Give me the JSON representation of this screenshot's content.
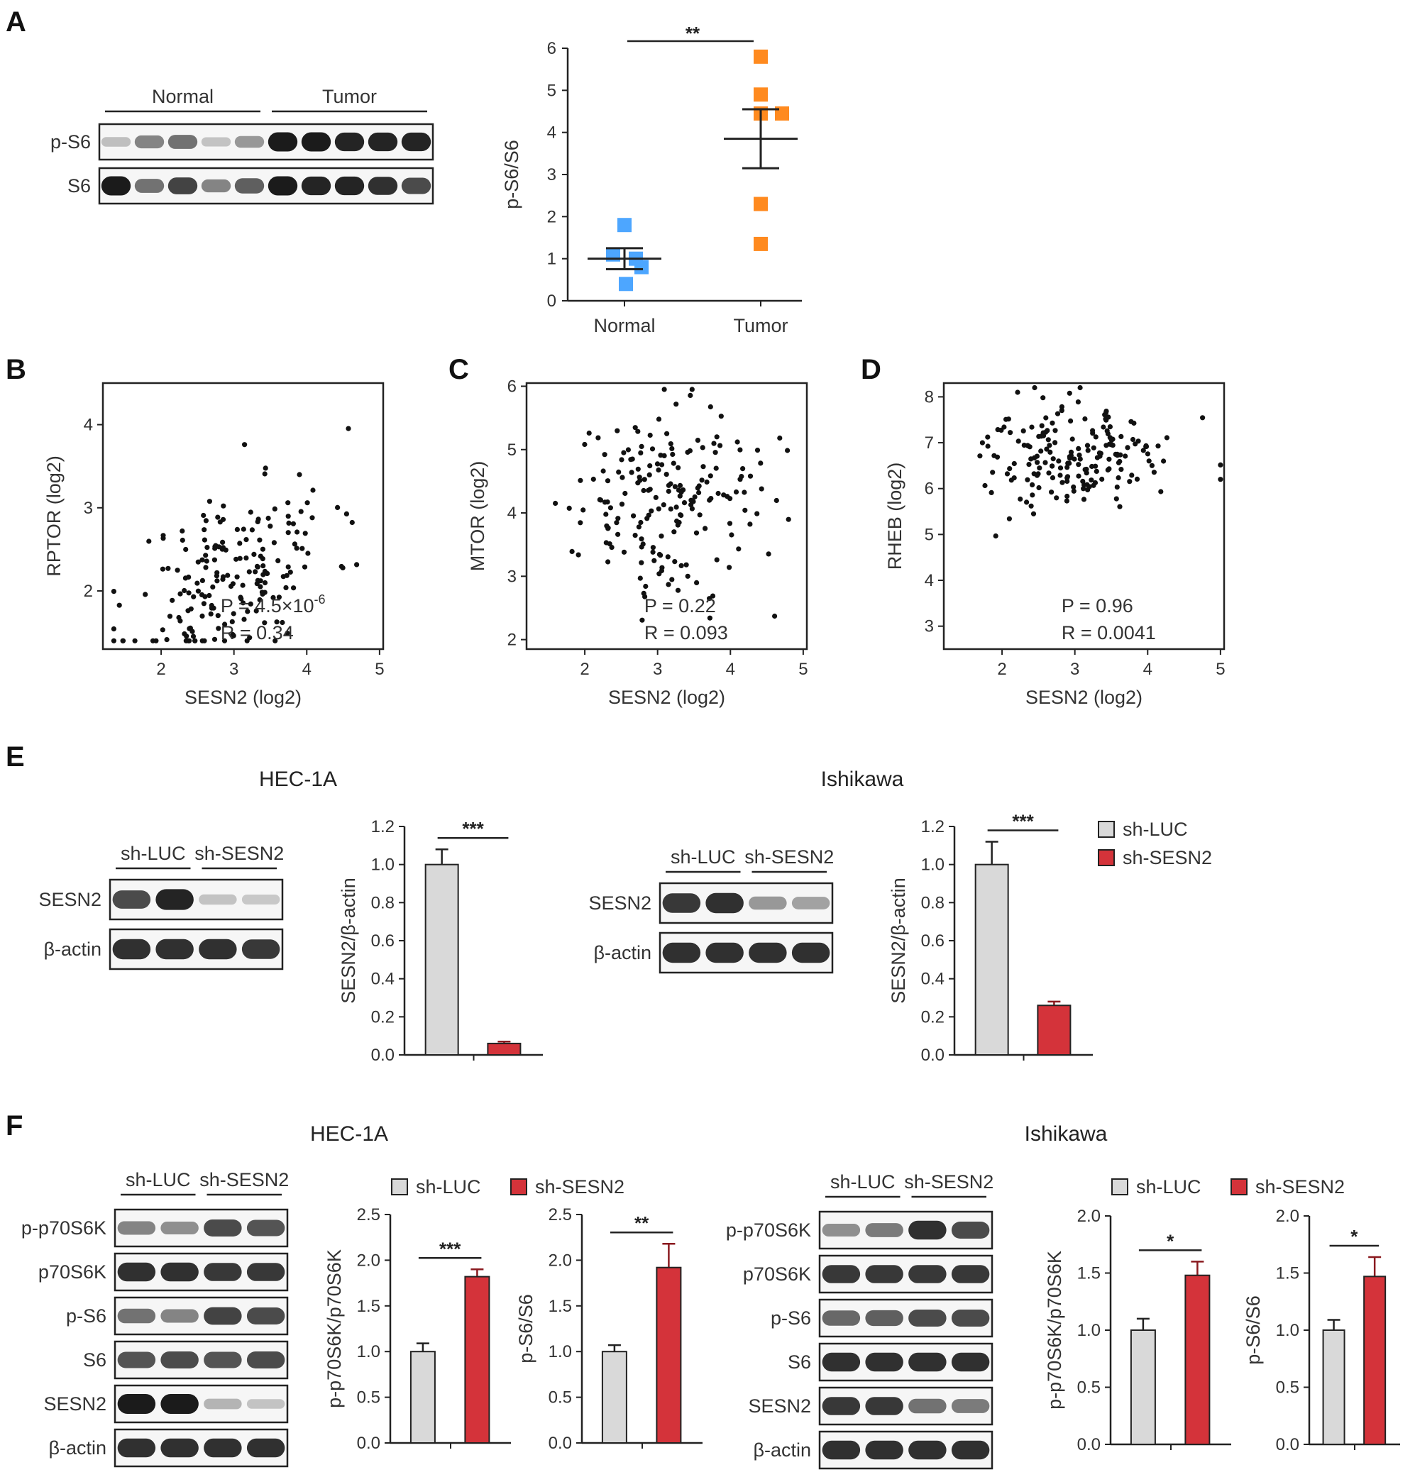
{
  "panels": {
    "A": "A",
    "B": "B",
    "C": "C",
    "D": "D",
    "E": "E",
    "F": "F"
  },
  "panelA": {
    "blot": {
      "groups": [
        "Normal",
        "Tumor"
      ],
      "rows": [
        {
          "label": "p-S6",
          "intensities": [
            0.15,
            0.45,
            0.55,
            0.12,
            0.35,
            1.0,
            1.0,
            0.95,
            0.95,
            0.95
          ]
        },
        {
          "label": "S6",
          "intensities": [
            1.0,
            0.55,
            0.8,
            0.45,
            0.65,
            1.0,
            0.95,
            0.95,
            0.9,
            0.75
          ]
        }
      ]
    },
    "chart_data": {
      "type": "scatter",
      "ylabel": "p-S6/S6",
      "ylim": [
        0,
        6
      ],
      "yticks": [
        "0",
        "1",
        "2",
        "3",
        "4",
        "5",
        "6"
      ],
      "categories": [
        "Normal",
        "Tumor"
      ],
      "series": [
        {
          "name": "Normal",
          "color": "#4da6ff",
          "points": [
            1.8,
            1.1,
            1.0,
            0.8,
            0.4
          ],
          "mean": 1.0,
          "sem_low": 0.75,
          "sem_high": 1.25
        },
        {
          "name": "Tumor",
          "color": "#ff8a1f",
          "points": [
            5.8,
            4.9,
            4.45,
            4.45,
            2.3,
            1.35
          ],
          "mean": 3.85,
          "sem_low": 3.15,
          "sem_high": 4.55
        }
      ],
      "significance": "**"
    }
  },
  "scatters": [
    {
      "panel": "B",
      "ylabel": "RPTOR  (log2)",
      "xlabel": "SESN2  (log2)",
      "yticks": [
        "2",
        "3",
        "4"
      ],
      "ytick_values": [
        2,
        3,
        4
      ],
      "xticks": [
        "2",
        "3",
        "4",
        "5"
      ],
      "xlim": [
        1.2,
        5.05
      ],
      "ylim": [
        1.3,
        4.5
      ],
      "stat1": "P = 4.5×10",
      "stat1_exp": "-6",
      "stat2": "R = 0.34",
      "n": 190,
      "seed": 11,
      "mode": "pos",
      "base": 2.2,
      "slope": 0.42,
      "spread": 0.55
    },
    {
      "panel": "C",
      "ylabel": "MTOR  (log2)",
      "xlabel": "SESN2  (log2)",
      "yticks": [
        "2",
        "3",
        "4",
        "5",
        "6"
      ],
      "ytick_values": [
        2,
        3,
        4,
        5,
        6
      ],
      "xticks": [
        "2",
        "3",
        "4",
        "5"
      ],
      "xlim": [
        1.2,
        5.05
      ],
      "ylim": [
        1.85,
        6.05
      ],
      "stat1": "P = 0.22",
      "stat1_exp": "",
      "stat2": "R = 0.093",
      "n": 190,
      "seed": 29,
      "mode": "flat",
      "base": 4.25,
      "slope": 0.05,
      "spread": 0.75
    },
    {
      "panel": "D",
      "ylabel": "RHEB  (log2)",
      "xlabel": "SESN2  (log2)",
      "yticks": [
        "3",
        "4",
        "5",
        "6",
        "7",
        "8"
      ],
      "ytick_values": [
        3,
        4,
        5,
        6,
        7,
        8
      ],
      "xticks": [
        "2",
        "3",
        "4",
        "5"
      ],
      "xlim": [
        1.2,
        5.05
      ],
      "ylim": [
        2.5,
        8.3
      ],
      "stat1": "P = 0.96",
      "stat1_exp": "",
      "stat2": "R = 0.0041",
      "n": 190,
      "seed": 47,
      "mode": "flat",
      "base": 6.7,
      "slope": 0.0,
      "spread": 0.55
    }
  ],
  "panelE": {
    "legend": [
      {
        "label": "sh-LUC",
        "color": "#d9d9d9"
      },
      {
        "label": "sh-SESN2",
        "color": "#d4333a"
      }
    ],
    "cells": [
      {
        "title": "HEC-1A",
        "blot": {
          "groups": [
            "sh-LUC",
            "sh-SESN2"
          ],
          "rows": [
            {
              "label": "SESN2",
              "intensities": [
                0.75,
                0.95,
                0.12,
                0.1
              ]
            },
            {
              "label": "β-actin",
              "intensities": [
                0.9,
                0.9,
                0.9,
                0.85
              ]
            }
          ]
        },
        "chart": {
          "type": "bar",
          "ylabel": "SESN2/β-actin",
          "ylim": [
            0,
            1.2
          ],
          "yticks": [
            "0.0",
            "0.2",
            "0.4",
            "0.6",
            "0.8",
            "1.0",
            "1.2"
          ],
          "values": [
            1.0,
            0.06
          ],
          "errors": [
            0.08,
            0.01
          ],
          "significance": "***"
        }
      },
      {
        "title": "Ishikawa",
        "blot": {
          "groups": [
            "sh-LUC",
            "sh-SESN2"
          ],
          "rows": [
            {
              "label": "SESN2",
              "intensities": [
                0.85,
                0.9,
                0.35,
                0.3
              ]
            },
            {
              "label": "β-actin",
              "intensities": [
                0.9,
                0.9,
                0.9,
                0.9
              ]
            }
          ]
        },
        "chart": {
          "type": "bar",
          "ylabel": "SESN2/β-actin",
          "ylim": [
            0,
            1.2
          ],
          "yticks": [
            "0.0",
            "0.2",
            "0.4",
            "0.6",
            "0.8",
            "1.0",
            "1.2"
          ],
          "values": [
            1.0,
            0.26
          ],
          "errors": [
            0.12,
            0.02
          ],
          "significance": "***"
        }
      }
    ]
  },
  "panelF": {
    "legend": [
      {
        "label": "sh-LUC",
        "color": "#d9d9d9"
      },
      {
        "label": "sh-SESN2",
        "color": "#d4333a"
      }
    ],
    "cells": [
      {
        "title": "HEC-1A",
        "blot": {
          "groups": [
            "sh-LUC",
            "sh-SESN2"
          ],
          "rows": [
            {
              "label": "p-p70S6K",
              "intensities": [
                0.45,
                0.4,
                0.75,
                0.7
              ]
            },
            {
              "label": "p70S6K",
              "intensities": [
                0.9,
                0.9,
                0.85,
                0.85
              ]
            },
            {
              "label": "p-S6",
              "intensities": [
                0.55,
                0.45,
                0.8,
                0.75
              ]
            },
            {
              "label": "S6",
              "intensities": [
                0.7,
                0.75,
                0.7,
                0.75
              ]
            },
            {
              "label": "SESN2",
              "intensities": [
                1.0,
                1.0,
                0.2,
                0.12
              ]
            },
            {
              "label": "β-actin",
              "intensities": [
                0.9,
                0.9,
                0.9,
                0.9
              ]
            }
          ]
        },
        "charts": [
          {
            "type": "bar",
            "ylabel": "p-p70S6K/p70S6K",
            "ylim": [
              0,
              2.5
            ],
            "yticks": [
              "0.0",
              "0.5",
              "1.0",
              "1.5",
              "2.0",
              "2.5"
            ],
            "values": [
              1.0,
              1.82
            ],
            "errors": [
              0.09,
              0.08
            ],
            "significance": "***"
          },
          {
            "type": "bar",
            "ylabel": "p-S6/S6",
            "ylim": [
              0,
              2.5
            ],
            "yticks": [
              "0.0",
              "0.5",
              "1.0",
              "1.5",
              "2.0",
              "2.5"
            ],
            "values": [
              1.0,
              1.92
            ],
            "errors": [
              0.07,
              0.26
            ],
            "significance": "**"
          }
        ]
      },
      {
        "title": "Ishikawa",
        "blot": {
          "groups": [
            "sh-LUC",
            "sh-SESN2"
          ],
          "rows": [
            {
              "label": "p-p70S6K",
              "intensities": [
                0.4,
                0.5,
                0.9,
                0.75
              ]
            },
            {
              "label": "p70S6K",
              "intensities": [
                0.85,
                0.85,
                0.85,
                0.85
              ]
            },
            {
              "label": "p-S6",
              "intensities": [
                0.6,
                0.65,
                0.75,
                0.75
              ]
            },
            {
              "label": "S6",
              "intensities": [
                0.9,
                0.9,
                0.9,
                0.9
              ]
            },
            {
              "label": "SESN2",
              "intensities": [
                0.85,
                0.85,
                0.55,
                0.5
              ]
            },
            {
              "label": "β-actin",
              "intensities": [
                0.9,
                0.9,
                0.9,
                0.9
              ]
            }
          ]
        },
        "charts": [
          {
            "type": "bar",
            "ylabel": "p-p70S6K/p70S6K",
            "ylim": [
              0,
              2.0
            ],
            "yticks": [
              "0.0",
              "0.5",
              "1.0",
              "1.5",
              "2.0"
            ],
            "values": [
              1.0,
              1.48
            ],
            "errors": [
              0.1,
              0.12
            ],
            "significance": "*"
          },
          {
            "type": "bar",
            "ylabel": "p-S6/S6",
            "ylim": [
              0,
              2.0
            ],
            "yticks": [
              "0.0",
              "0.5",
              "1.0",
              "1.5",
              "2.0"
            ],
            "values": [
              1.0,
              1.47
            ],
            "errors": [
              0.09,
              0.17
            ],
            "significance": "*"
          }
        ]
      }
    ]
  }
}
